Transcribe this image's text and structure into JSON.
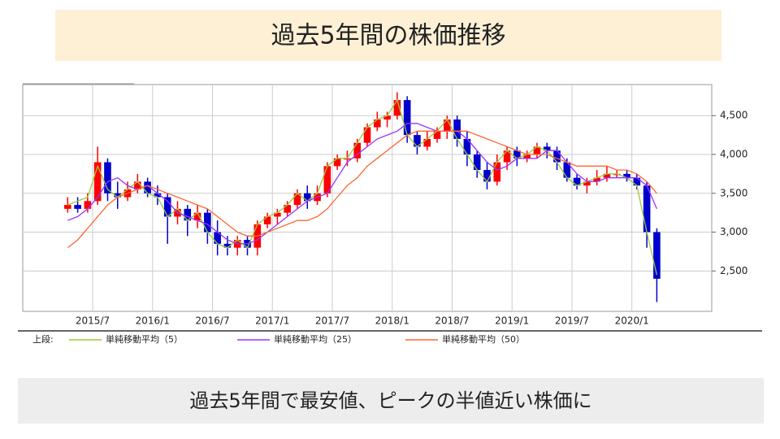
{
  "chart_data": {
    "type": "candlestick",
    "title": "過去5年間の株価推移",
    "x": [
      "2015/4",
      "2015/5",
      "2015/6",
      "2015/7",
      "2015/8",
      "2015/9",
      "2015/10",
      "2015/11",
      "2015/12",
      "2016/1",
      "2016/2",
      "2016/3",
      "2016/4",
      "2016/5",
      "2016/6",
      "2016/7",
      "2016/8",
      "2016/9",
      "2016/10",
      "2016/11",
      "2016/12",
      "2017/1",
      "2017/2",
      "2017/3",
      "2017/4",
      "2017/5",
      "2017/6",
      "2017/7",
      "2017/8",
      "2017/9",
      "2017/10",
      "2017/11",
      "2017/12",
      "2018/1",
      "2018/2",
      "2018/3",
      "2018/4",
      "2018/5",
      "2018/6",
      "2018/7",
      "2018/8",
      "2018/9",
      "2018/10",
      "2018/11",
      "2018/12",
      "2019/1",
      "2019/2",
      "2019/3",
      "2019/4",
      "2019/5",
      "2019/6",
      "2019/7",
      "2019/8",
      "2019/9",
      "2019/10",
      "2019/11",
      "2019/12",
      "2020/1",
      "2020/2",
      "2020/3"
    ],
    "open": [
      3300,
      3350,
      3300,
      3400,
      3900,
      3500,
      3450,
      3550,
      3650,
      3500,
      3450,
      3200,
      3300,
      3150,
      3250,
      3000,
      2850,
      2800,
      2900,
      2800,
      3100,
      3200,
      3250,
      3350,
      3500,
      3400,
      3500,
      3850,
      3950,
      3950,
      4150,
      4350,
      4450,
      4500,
      4700,
      4250,
      4100,
      4200,
      4300,
      4450,
      4200,
      4000,
      3800,
      3650,
      3900,
      4050,
      3950,
      4000,
      4100,
      4050,
      3900,
      3700,
      3600,
      3650,
      3700,
      3750,
      3750,
      3700,
      3600,
      3000
    ],
    "high": [
      3450,
      3450,
      3500,
      4100,
      3950,
      3650,
      3650,
      3750,
      3700,
      3600,
      3500,
      3400,
      3350,
      3350,
      3300,
      3150,
      2950,
      2950,
      2950,
      3150,
      3250,
      3300,
      3400,
      3550,
      3600,
      3600,
      3900,
      4000,
      4050,
      4200,
      4400,
      4550,
      4550,
      4800,
      4750,
      4300,
      4300,
      4350,
      4500,
      4500,
      4300,
      4050,
      3900,
      4000,
      4100,
      4100,
      4050,
      4150,
      4150,
      4100,
      3950,
      3750,
      3700,
      3800,
      3850,
      3800,
      3800,
      3750,
      3650,
      3050
    ],
    "low": [
      3250,
      3250,
      3250,
      3350,
      3400,
      3300,
      3400,
      3500,
      3450,
      3350,
      2850,
      3100,
      2950,
      3050,
      2850,
      2700,
      2700,
      2700,
      2700,
      2700,
      3050,
      3100,
      3200,
      3300,
      3300,
      3350,
      3450,
      3800,
      3850,
      3900,
      4100,
      4300,
      4350,
      4450,
      4150,
      4000,
      4050,
      4150,
      4200,
      4100,
      3850,
      3700,
      3550,
      3600,
      3800,
      3850,
      3900,
      3950,
      3950,
      3800,
      3650,
      3550,
      3500,
      3600,
      3650,
      3700,
      3650,
      3550,
      2800,
      2100
    ],
    "close": [
      3350,
      3300,
      3400,
      3900,
      3500,
      3450,
      3550,
      3650,
      3500,
      3450,
      3200,
      3300,
      3150,
      3250,
      3000,
      2850,
      2800,
      2900,
      2800,
      3100,
      3200,
      3250,
      3350,
      3500,
      3400,
      3500,
      3850,
      3950,
      3950,
      4150,
      4350,
      4450,
      4500,
      4700,
      4250,
      4100,
      4200,
      4300,
      4450,
      4200,
      4000,
      3800,
      3650,
      3900,
      4050,
      3950,
      4000,
      4100,
      4050,
      3900,
      3700,
      3600,
      3650,
      3700,
      3750,
      3750,
      3700,
      3600,
      3000,
      2400
    ],
    "up_color": "#ff0000",
    "down_color": "#0000cc",
    "legend_title": "上段:",
    "series": [
      {
        "name": "単純移動平均（5）",
        "color": "#99cc33",
        "values": [
          3350,
          3400,
          3450,
          3850,
          3550,
          3450,
          3550,
          3650,
          3500,
          3450,
          3200,
          3300,
          3150,
          3250,
          3000,
          2850,
          2800,
          2900,
          2800,
          3100,
          3200,
          3250,
          3350,
          3500,
          3400,
          3500,
          3850,
          3950,
          3950,
          4150,
          4350,
          4450,
          4500,
          4700,
          4250,
          4100,
          4200,
          4300,
          4450,
          4200,
          4000,
          3800,
          3650,
          3900,
          4050,
          3950,
          4000,
          4100,
          4050,
          3900,
          3700,
          3600,
          3650,
          3700,
          3750,
          3750,
          3700,
          3600,
          3000,
          2450
        ]
      },
      {
        "name": "単純移動平均（25）",
        "color": "#9933ff",
        "values": [
          3150,
          3200,
          3300,
          3450,
          3650,
          3700,
          3600,
          3550,
          3600,
          3500,
          3400,
          3250,
          3200,
          3150,
          3100,
          3000,
          2900,
          2850,
          2850,
          2900,
          3000,
          3100,
          3200,
          3300,
          3400,
          3450,
          3500,
          3700,
          3900,
          4000,
          4100,
          4200,
          4250,
          4300,
          4400,
          4400,
          4350,
          4300,
          4300,
          4300,
          4200,
          4050,
          3900,
          3800,
          3850,
          3950,
          3950,
          3950,
          4050,
          4050,
          3900,
          3750,
          3650,
          3650,
          3700,
          3700,
          3700,
          3700,
          3600,
          3300
        ]
      },
      {
        "name": "単純移動平均（50）",
        "color": "#ff6633",
        "values": [
          2800,
          2900,
          3050,
          3200,
          3350,
          3450,
          3500,
          3550,
          3600,
          3550,
          3500,
          3450,
          3400,
          3350,
          3300,
          3200,
          3100,
          3000,
          2950,
          2950,
          3000,
          3050,
          3100,
          3150,
          3150,
          3200,
          3300,
          3450,
          3600,
          3700,
          3850,
          3950,
          4050,
          4150,
          4250,
          4300,
          4300,
          4300,
          4300,
          4300,
          4300,
          4250,
          4200,
          4150,
          4100,
          4050,
          4000,
          4000,
          4000,
          3950,
          3900,
          3850,
          3850,
          3850,
          3850,
          3800,
          3800,
          3750,
          3650,
          3500
        ]
      }
    ],
    "xlim": [
      "2014/12",
      "2020/9"
    ],
    "xticks": [
      "2015/7",
      "2016/1",
      "2016/7",
      "2017/1",
      "2017/7",
      "2018/1",
      "2018/7",
      "2019/1",
      "2019/7",
      "2020/1"
    ],
    "ylim": [
      1980,
      4900
    ],
    "yticks": [
      {
        "value": 2500,
        "label": "2,500"
      },
      {
        "value": 3000,
        "label": "3,000"
      },
      {
        "value": 3500,
        "label": "3,500"
      },
      {
        "value": 4000,
        "label": "4,000"
      },
      {
        "value": 4500,
        "label": "4,500"
      }
    ],
    "grid": true
  },
  "slide": {
    "caption": "過去5年間で最安値、ピークの半値近い株価に"
  }
}
